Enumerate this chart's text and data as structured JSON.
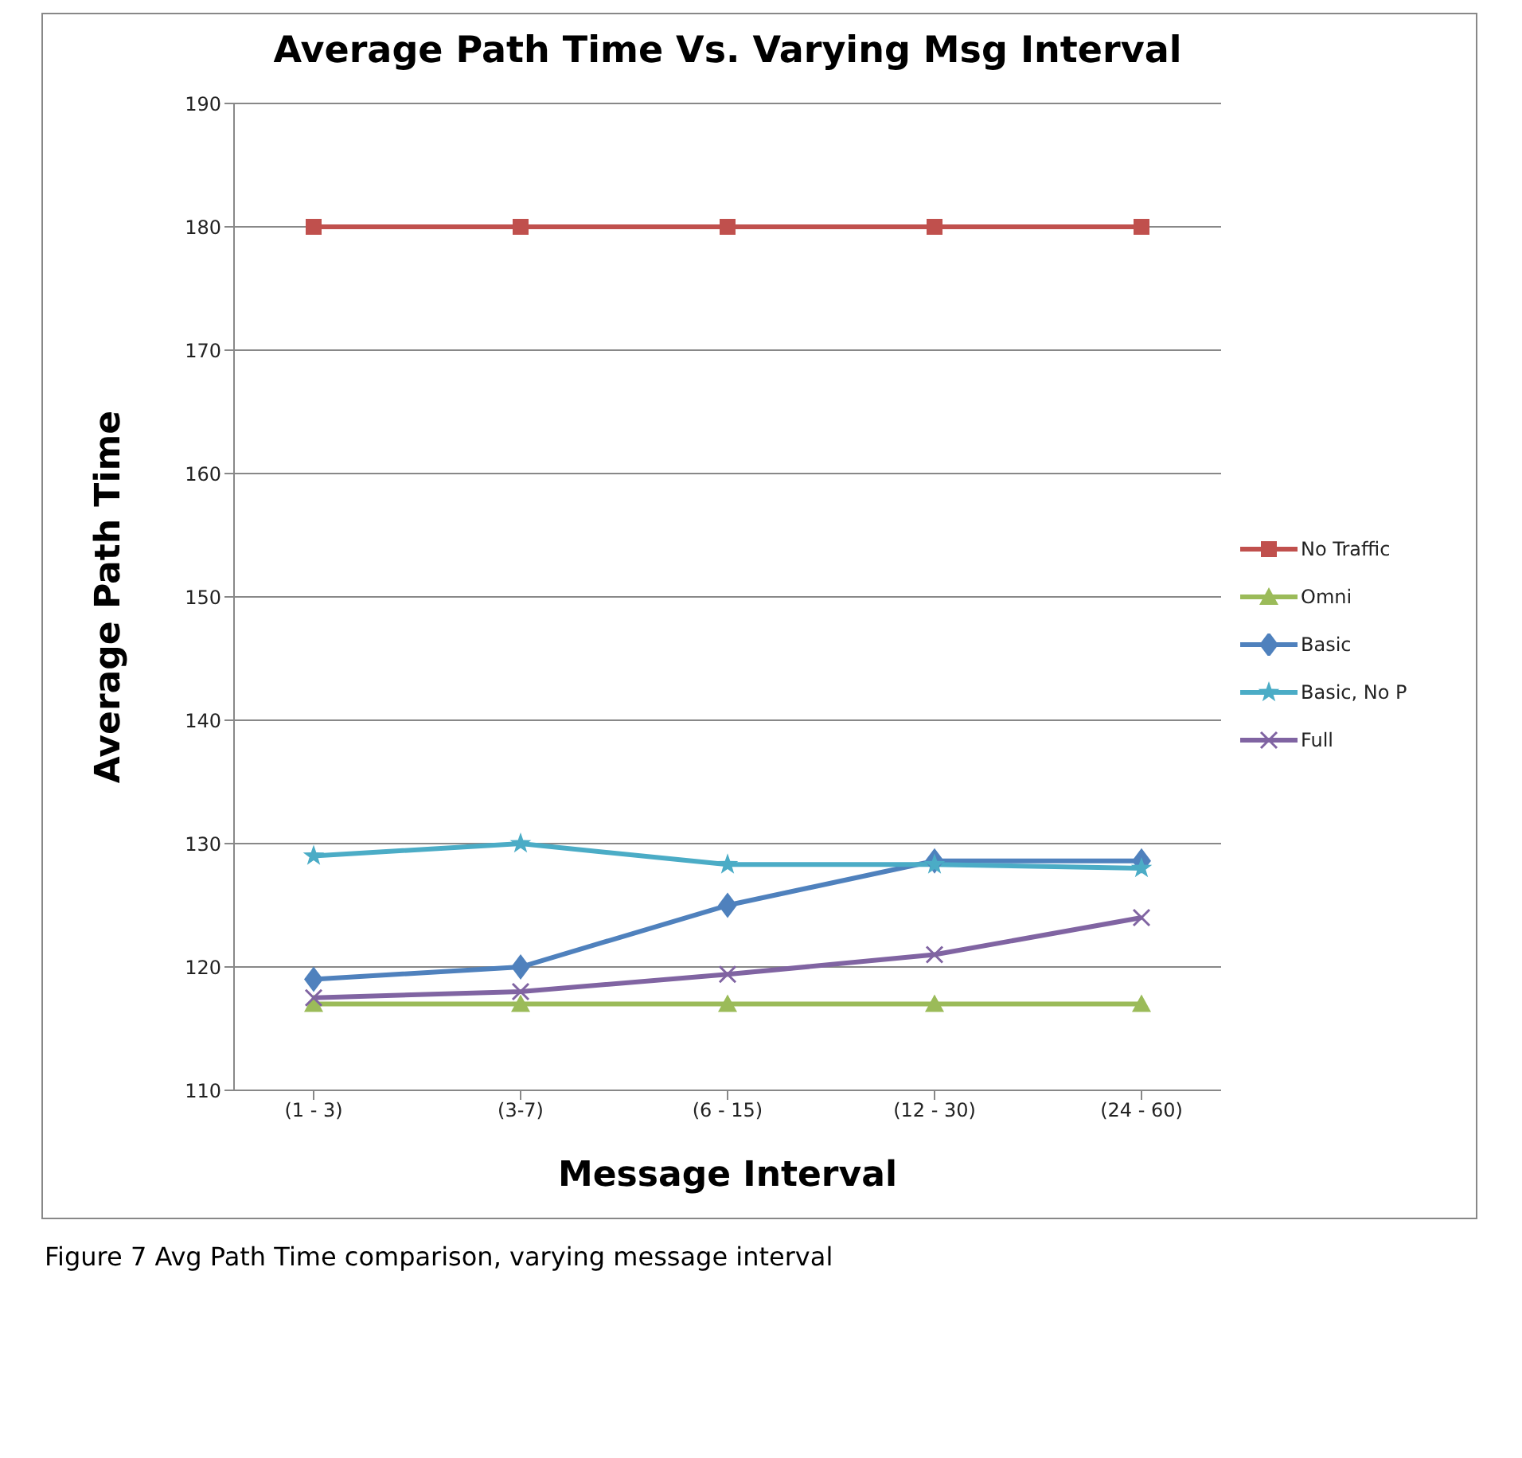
{
  "chart_data": {
    "type": "line",
    "title": "Average Path Time Vs. Varying Msg Interval",
    "xlabel": "Message Interval",
    "ylabel": "Average Path Time",
    "categories": [
      "(1 - 3)",
      "(3-7)",
      "(6 - 15)",
      "(12 - 30)",
      "(24 - 60)"
    ],
    "series": [
      {
        "name": "No Traffic",
        "color": "#c0504d",
        "marker": "square",
        "values": [
          180,
          180,
          180,
          180,
          180
        ]
      },
      {
        "name": "Omni",
        "color": "#9bbb59",
        "marker": "triangle",
        "values": [
          117,
          117,
          117,
          117,
          117
        ]
      },
      {
        "name": "Basic",
        "color": "#4f81bd",
        "marker": "diamond",
        "values": [
          119,
          120,
          125,
          128.6,
          128.6
        ]
      },
      {
        "name": "Basic, No P",
        "color": "#4bacc6",
        "marker": "star",
        "values": [
          129,
          130,
          128.3,
          128.3,
          128
        ]
      },
      {
        "name": "Full",
        "color": "#8064a2",
        "marker": "cross",
        "values": [
          117.5,
          118,
          119.4,
          121,
          124
        ]
      }
    ],
    "ylim": [
      110,
      190
    ],
    "yticks": [
      110,
      120,
      130,
      140,
      150,
      160,
      170,
      180,
      190
    ],
    "grid": "y",
    "legend": "right",
    "line_style": "solid",
    "annotations": [
      "Figure 7  Avg Path Time comparison, varying message interval"
    ]
  }
}
